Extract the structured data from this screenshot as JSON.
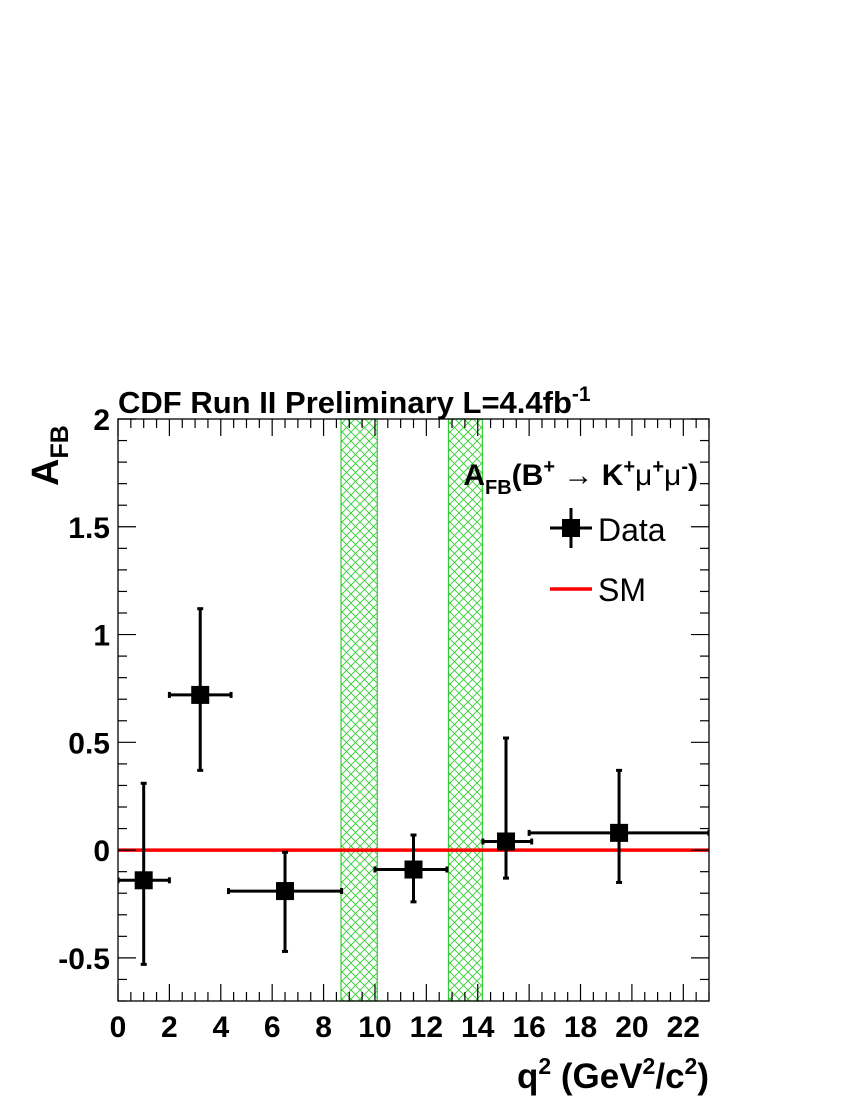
{
  "chart_data": {
    "type": "scatter",
    "title": "CDF Run II Preliminary L=4.4fb",
    "title_sup": "-1",
    "xlabel": {
      "base": "q",
      "sup1": "2",
      "mid": " (GeV",
      "sup2": "2",
      "slash": "/c",
      "sup3": "2",
      "end": ")"
    },
    "ylabel": {
      "base": "A",
      "sub": "FB"
    },
    "xlim": [
      0,
      23
    ],
    "ylim": [
      -0.7,
      2.0
    ],
    "x_ticks": [
      "0",
      "2",
      "4",
      "6",
      "8",
      "10",
      "12",
      "14",
      "16",
      "18",
      "20",
      "22"
    ],
    "y_ticks": [
      "-0.5",
      "0",
      "0.5",
      "1",
      "1.5",
      "2"
    ],
    "x_tick_values": [
      0,
      2,
      4,
      6,
      8,
      10,
      12,
      14,
      16,
      18,
      20,
      22
    ],
    "y_tick_values": [
      -0.5,
      0,
      0.5,
      1,
      1.5,
      2
    ],
    "process_label": {
      "a": "A",
      "fb": "FB",
      "paren": "(B",
      "plus1": "+",
      "arrow": " → ",
      "k": "K",
      "plus2": "+",
      "mu1": "μ",
      "plus3": "+",
      "mu2": "μ",
      "minus": "-",
      "close": ")"
    },
    "legend": [
      {
        "label": "Data",
        "style": "marker"
      },
      {
        "label": "SM",
        "style": "line",
        "color": "#ff0000"
      }
    ],
    "legend_position": "top-right",
    "series": [
      {
        "name": "Data",
        "points": [
          {
            "x": 1.0,
            "y": -0.14,
            "xerr_lo": 1.0,
            "xerr_hi": 1.0,
            "yerr_lo": 0.39,
            "yerr_hi": 0.45
          },
          {
            "x": 3.2,
            "y": 0.72,
            "xerr_lo": 1.2,
            "xerr_hi": 1.2,
            "yerr_lo": 0.35,
            "yerr_hi": 0.4
          },
          {
            "x": 6.5,
            "y": -0.19,
            "xerr_lo": 2.2,
            "xerr_hi": 2.2,
            "yerr_lo": 0.28,
            "yerr_hi": 0.18
          },
          {
            "x": 11.5,
            "y": -0.09,
            "xerr_lo": 1.5,
            "xerr_hi": 1.3,
            "yerr_lo": 0.15,
            "yerr_hi": 0.16
          },
          {
            "x": 15.1,
            "y": 0.04,
            "xerr_lo": 0.9,
            "xerr_hi": 1.0,
            "yerr_lo": 0.17,
            "yerr_hi": 0.48
          },
          {
            "x": 19.5,
            "y": 0.08,
            "xerr_lo": 3.5,
            "xerr_hi": 3.5,
            "yerr_lo": 0.23,
            "yerr_hi": 0.29
          }
        ]
      }
    ],
    "sm_line": {
      "y": 0.0,
      "color": "#ff0000"
    },
    "vetoed_regions": [
      [
        8.68,
        10.09
      ],
      [
        12.86,
        14.18
      ]
    ],
    "vetoed_color": "#33cc33"
  }
}
